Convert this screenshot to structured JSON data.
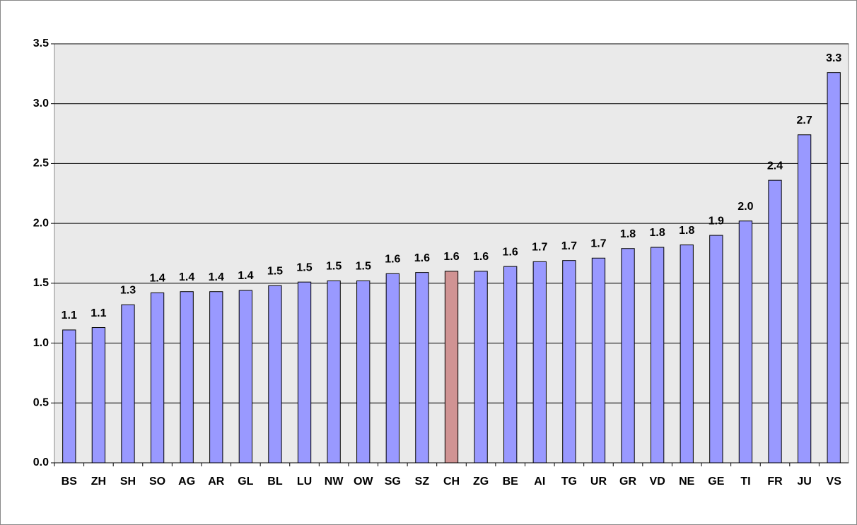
{
  "chart_data": {
    "type": "bar",
    "categories": [
      "BS",
      "ZH",
      "SH",
      "SO",
      "AG",
      "AR",
      "GL",
      "BL",
      "LU",
      "NW",
      "OW",
      "SG",
      "SZ",
      "CH",
      "ZG",
      "BE",
      "AI",
      "TG",
      "UR",
      "GR",
      "VD",
      "NE",
      "GE",
      "TI",
      "FR",
      "JU",
      "VS"
    ],
    "values": [
      1.11,
      1.13,
      1.32,
      1.42,
      1.43,
      1.43,
      1.44,
      1.48,
      1.51,
      1.52,
      1.52,
      1.58,
      1.59,
      1.6,
      1.6,
      1.64,
      1.68,
      1.69,
      1.71,
      1.79,
      1.8,
      1.82,
      1.9,
      2.02,
      2.36,
      2.74,
      3.26
    ],
    "value_labels": [
      "1.1",
      "1.1",
      "1.3",
      "1.4",
      "1.4",
      "1.4",
      "1.4",
      "1.5",
      "1.5",
      "1.5",
      "1.5",
      "1.6",
      "1.6",
      "1.6",
      "1.6",
      "1.6",
      "1.7",
      "1.7",
      "1.7",
      "1.8",
      "1.8",
      "1.8",
      "1.9",
      "2.0",
      "2.4",
      "2.7",
      "3.3"
    ],
    "colors": [
      "#9999ff",
      "#9999ff",
      "#9999ff",
      "#9999ff",
      "#9999ff",
      "#9999ff",
      "#9999ff",
      "#9999ff",
      "#9999ff",
      "#9999ff",
      "#9999ff",
      "#9999ff",
      "#9999ff",
      "#d09393",
      "#9999ff",
      "#9999ff",
      "#9999ff",
      "#9999ff",
      "#9999ff",
      "#9999ff",
      "#9999ff",
      "#9999ff",
      "#9999ff",
      "#9999ff",
      "#9999ff",
      "#9999ff",
      "#9999ff"
    ],
    "ylim": [
      0,
      3.5
    ],
    "yticks": [
      {
        "value": 0,
        "label": "0.0"
      },
      0.5,
      {
        "value": 1,
        "label": "1.0"
      },
      1.5,
      {
        "value": 2,
        "label": "2.0"
      },
      2.5,
      {
        "value": 3,
        "label": "3.0"
      },
      3.5
    ],
    "grid": true
  }
}
